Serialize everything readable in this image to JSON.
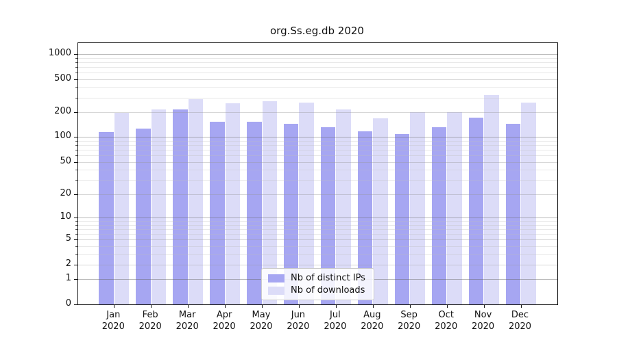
{
  "title": "org.Ss.eg.db 2020",
  "chart_data": {
    "type": "bar",
    "title": "org.Ss.eg.db 2020",
    "categories": [
      "Jan 2020",
      "Feb 2020",
      "Mar 2020",
      "Apr 2020",
      "May 2020",
      "Jun 2020",
      "Jul 2020",
      "Aug 2020",
      "Sep 2020",
      "Oct 2020",
      "Nov 2020",
      "Dec 2020"
    ],
    "series": [
      {
        "name": "Nb of distinct IPs",
        "color": "#a6a6f2",
        "values": [
          116,
          126,
          214,
          152,
          154,
          145,
          132,
          118,
          109,
          132,
          171,
          146
        ]
      },
      {
        "name": "Nb of downloads",
        "color": "#dcdcf8",
        "values": [
          197,
          216,
          289,
          255,
          271,
          261,
          214,
          168,
          200,
          201,
          320,
          262
        ]
      }
    ],
    "xlabel": "",
    "ylabel": "",
    "yscale": "log1p",
    "yticks": [
      0,
      1,
      2,
      5,
      10,
      20,
      50,
      100,
      200,
      500,
      1000
    ],
    "ylim": [
      0,
      1350
    ],
    "grid": "major+minor",
    "legend_position": "lower center"
  }
}
